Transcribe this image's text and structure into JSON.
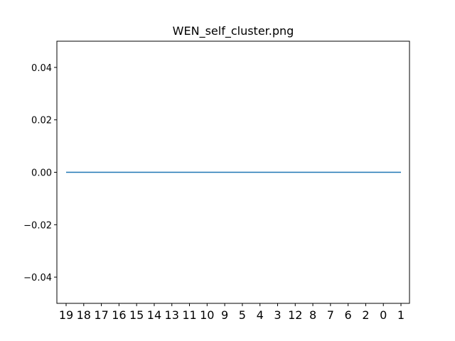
{
  "chart_data": {
    "type": "line",
    "title": "WEN_self_cluster.png",
    "xlabel": "",
    "ylabel": "",
    "categories": [
      "19",
      "18",
      "17",
      "16",
      "15",
      "14",
      "13",
      "11",
      "10",
      "9",
      "5",
      "4",
      "3",
      "12",
      "8",
      "7",
      "6",
      "2",
      "0",
      "1"
    ],
    "series": [
      {
        "values": [
          0,
          0,
          0,
          0,
          0,
          0,
          0,
          0,
          0,
          0,
          0,
          0,
          0,
          0,
          0,
          0,
          0,
          0,
          0,
          0
        ],
        "color": "#1f77b4"
      }
    ],
    "ylim": [
      -0.05,
      0.05
    ],
    "yticks": [
      0.04,
      0.02,
      0.0,
      -0.02,
      -0.04
    ],
    "ytick_labels": [
      "0.04",
      "0.02",
      "0.00",
      "−0.02",
      "−0.04"
    ],
    "grid": false,
    "legend": "none"
  }
}
